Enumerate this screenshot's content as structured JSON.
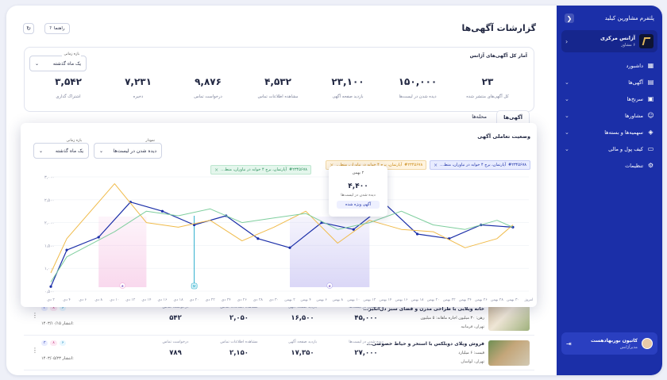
{
  "sidebar": {
    "top_label": "پلتفرم مشاورین کیلید",
    "agency": {
      "name": "آژانس مرکزی",
      "role": "۶ مشاور"
    },
    "items": [
      {
        "label": "داشبورد",
        "icon": "grid-icon",
        "has_chevron": false
      },
      {
        "label": "آگهی‌ها",
        "icon": "document-icon",
        "has_chevron": true
      },
      {
        "label": "سرنخ‌ها",
        "icon": "chart-icon",
        "has_chevron": true
      },
      {
        "label": "مشاورها",
        "icon": "users-icon",
        "has_chevron": true
      },
      {
        "label": "سهمیه‌ها و بسته‌ها",
        "icon": "package-icon",
        "has_chevron": true
      },
      {
        "label": "کیف پول و مالی",
        "icon": "wallet-icon",
        "has_chevron": true
      },
      {
        "label": "تنظیمات",
        "icon": "gear-icon",
        "has_chevron": false
      }
    ],
    "user": {
      "name": "کاتیون بوربهادهست",
      "role": "مدیرآژانس"
    }
  },
  "header": {
    "title": "گزارشات آگهی‌ها",
    "help_label": "راهنما"
  },
  "stats": {
    "title": "آمار کل آگهی‌های آژانس",
    "period_caption": "بازه زمانی",
    "period_value": "یک ماه گذشته",
    "items": [
      {
        "value": "۲۳",
        "label": "کل آگهی‌های منتشر شده"
      },
      {
        "value": "۱۵۰,۰۰۰",
        "label": "دیده شدن در لیست‌ها"
      },
      {
        "value": "۲۳,۱۰۰",
        "label": "بازدید صفحه آگهی"
      },
      {
        "value": "۴,۵۳۲",
        "label": "مشاهده اطلاعات تماس"
      },
      {
        "value": "۹,۸۷۶",
        "label": "درخواست تماس"
      },
      {
        "value": "۷,۲۳۱",
        "label": "ذخیره"
      },
      {
        "value": "۳,۵۴۲",
        "label": "اشتراک گذاری"
      }
    ]
  },
  "tabs": [
    {
      "label": "آگهی‌ها",
      "active": true
    },
    {
      "label": "محله‌ها",
      "active": false
    }
  ],
  "chart_panel": {
    "title": "وضعیت تعاملی آگهی",
    "chart_select_caption": "نمودار",
    "chart_select_value": "دیده شدن در لیست‌ها",
    "period_caption": "بازه زمانی",
    "period_value": "یک ماه گذشته",
    "chips": [
      {
        "code": "#۲۳۴۵۶۷۸",
        "text": "آپارتمان، برج ۴ خوابه در نیاوران، منط...",
        "color": "blue"
      },
      {
        "code": "#۲۳۴۵۶۷۸",
        "text": "آپارتمان، برج ۴ خوابه در نیاوران، منط...",
        "color": "orange"
      },
      {
        "code": "#۲۳۴۵۶۷۸",
        "text": "آپارتمان، برج ۴ خوابه در نیاوران، منط...",
        "color": "green"
      }
    ],
    "tooltip": {
      "date": "۲ بهمن",
      "value": "۴,۴۰۰",
      "label": "دیده شدن در لیست‌ها",
      "button": "آگهی ویژه شده"
    }
  },
  "chart_data": {
    "type": "line",
    "x": [
      "۲ دی",
      "۴ دی",
      "۶ دی",
      "۸ دی",
      "۱۰ دی",
      "۱۲ دی",
      "۱۴ دی",
      "۱۶ دی",
      "۱۸ دی",
      "۲۰ دی",
      "۲۲ دی",
      "۲۴ دی",
      "۲۶ دی",
      "۲۸ دی",
      "۳۰ دی",
      "۲ بهمن",
      "۴ بهمن",
      "۶ بهمن",
      "۸ بهمن",
      "۱۰ بهمن",
      "۱۲ بهمن",
      "۱۴ بهمن",
      "۱۶ بهمن",
      "۱۸ بهمن",
      "۲۰ بهمن",
      "۲۲ بهمن",
      "۲۴ بهمن",
      "۲۶ بهمن",
      "۲۸ بهمن",
      "۳۰ بهمن",
      "امروز"
    ],
    "y_ticks": [
      "۰,۵۰۰",
      "۱,۰۰۰",
      "۱,۵۰۰",
      "۲,۰۰۰",
      "۲,۵۰۰",
      "۳,۰۰۰"
    ],
    "ylim": [
      500,
      3000
    ],
    "series": [
      {
        "color": "#1b2fa8",
        "points": [
          [
            0,
            600
          ],
          [
            1,
            1400
          ],
          [
            3,
            1680
          ],
          [
            5,
            2450
          ],
          [
            7,
            2250
          ],
          [
            9,
            1950
          ],
          [
            11,
            2150
          ],
          [
            13,
            1650
          ],
          [
            15,
            1450
          ],
          [
            17,
            2000
          ],
          [
            19,
            1850
          ],
          [
            21,
            2400
          ],
          [
            23,
            1750
          ],
          [
            25,
            1650
          ],
          [
            27,
            1950
          ],
          [
            29,
            1900
          ]
        ]
      },
      {
        "color": "#f0bb4a",
        "points": [
          [
            0,
            900
          ],
          [
            1,
            1650
          ],
          [
            4,
            2850
          ],
          [
            6,
            2000
          ],
          [
            8,
            1900
          ],
          [
            10,
            2050
          ],
          [
            12,
            1600
          ],
          [
            14,
            1900
          ],
          [
            16,
            2250
          ],
          [
            18,
            1550
          ],
          [
            20,
            2050
          ],
          [
            22,
            1850
          ],
          [
            24,
            1800
          ],
          [
            26,
            1450
          ],
          [
            28,
            1650
          ],
          [
            29,
            1950
          ]
        ]
      },
      {
        "color": "#7fce9e",
        "points": [
          [
            0,
            700
          ],
          [
            1,
            1250
          ],
          [
            4,
            1800
          ],
          [
            6,
            2250
          ],
          [
            8,
            2150
          ],
          [
            10,
            2300
          ],
          [
            12,
            2000
          ],
          [
            14,
            2100
          ],
          [
            16,
            2200
          ],
          [
            18,
            1850
          ],
          [
            20,
            2000
          ],
          [
            22,
            2250
          ],
          [
            24,
            1950
          ],
          [
            26,
            1850
          ],
          [
            28,
            2050
          ],
          [
            29,
            1900
          ]
        ]
      }
    ],
    "highlight_regions": [
      {
        "from": 3,
        "to": 6,
        "color": "#f4b9df",
        "marker": "★"
      },
      {
        "from": 15,
        "to": 20,
        "color": "#bdb7f0",
        "marker": "★"
      }
    ],
    "vertical_marker": {
      "at": 9,
      "color": "#19a7c7",
      "marker": "M"
    }
  },
  "table": {
    "column_headers": [
      "دیده شدن در لیست‌ها",
      "بازدید صفحه آگهی",
      "مشاهده اطلاعات تماس",
      "درخواست تماس"
    ],
    "rows": [
      {
        "title": "خانه ویلایی با طراحی مدرن و فضای سبز دل‌انگیز...",
        "price": "۵ میلیون",
        "price_label": "اجاره ماهانه:",
        "deposit": "۳۰ میلیون",
        "deposit_label": "رهن:",
        "meta": "تهران، فرمانیه",
        "values": [
          "۴۵,۰۰۰",
          "۱۶,۵۰۰",
          "۲,۰۵۰",
          "۵۴۲"
        ],
        "date": "۱۴۰۳/۱۰/۱۵ انتشار:",
        "badges": [
          "۳",
          "۸",
          "۶"
        ]
      },
      {
        "title": "فروش ویلای دوبلکس با استخر و حیاط خصوصی...",
        "price": "۶ میلیارد",
        "price_label": "قیمت:",
        "meta": "تهران، لواسان",
        "values": [
          "۲۷,۰۰۰",
          "۱۷,۳۵۰",
          "۲,۱۵۰",
          "۷۸۹"
        ],
        "date": "۱۴۰۳/۰۵/۲۳ انتشار:",
        "badges": [
          "۳",
          "۸",
          "۶"
        ]
      }
    ]
  }
}
